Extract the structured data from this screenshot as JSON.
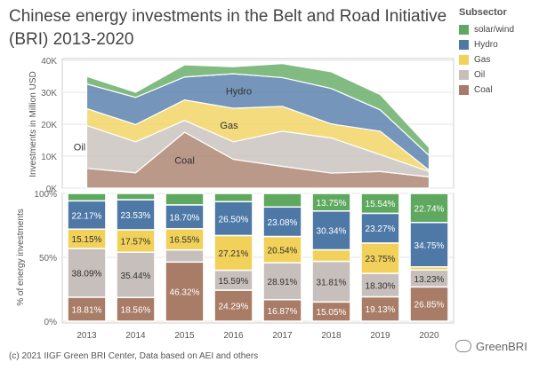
{
  "title_line1": "Chinese energy investments in the Belt and Road Initiative",
  "title_line2": "(BRI) 2013-2020",
  "legend": {
    "title": "Subsector",
    "items": [
      {
        "label": "solar/wind",
        "color": "#5fa85f"
      },
      {
        "label": "Hydro",
        "color": "#4e79a7"
      },
      {
        "label": "Gas",
        "color": "#f1d15a"
      },
      {
        "label": "Oil",
        "color": "#c7bfbb"
      },
      {
        "label": "Coal",
        "color": "#a87c66"
      }
    ]
  },
  "footer": "(c) 2021 IIGF Green BRI Center, Data based on AEI and others",
  "watermark": "GreenBRI",
  "chart_data": [
    {
      "type": "area",
      "stacked": true,
      "x": [
        "2013",
        "2014",
        "2015",
        "2016",
        "2017",
        "2018",
        "2019",
        "2020"
      ],
      "ylabel": "Investments in Million USD",
      "ylim": [
        0,
        40000
      ],
      "yticks": [
        "0K",
        "10K",
        "20K",
        "30K",
        "40K"
      ],
      "series_labels_on_chart": [
        "Hydro",
        "Gas",
        "Oil",
        "Coal"
      ],
      "series": [
        {
          "name": "Coal",
          "color": "#a87c66",
          "values": [
            6200,
            4800,
            17500,
            9000,
            6800,
            4700,
            5200,
            3500
          ]
        },
        {
          "name": "Oil",
          "color": "#c7bfbb",
          "values": [
            13400,
            9700,
            3700,
            5500,
            11000,
            11000,
            5300,
            1700
          ]
        },
        {
          "name": "Gas",
          "color": "#f1d15a",
          "values": [
            5300,
            5400,
            6400,
            10500,
            7800,
            4400,
            7300,
            400
          ]
        },
        {
          "name": "Hydro",
          "color": "#4e79a7",
          "values": [
            7700,
            8500,
            7200,
            10800,
            9000,
            11100,
            6700,
            4600
          ]
        },
        {
          "name": "solar/wind",
          "color": "#5fa85f",
          "values": [
            2400,
            1600,
            3800,
            2200,
            4400,
            5200,
            4800,
            2500
          ]
        }
      ],
      "grid": true
    },
    {
      "type": "bar",
      "stacked": true,
      "categories": [
        "2013",
        "2014",
        "2015",
        "2016",
        "2017",
        "2018",
        "2019",
        "2020"
      ],
      "ylabel": "% of energy investments",
      "ylim": [
        0,
        100
      ],
      "yticks": [
        "0%",
        "50%",
        "100%"
      ],
      "series": [
        {
          "name": "Coal",
          "color": "#a87c66",
          "values": [
            18.81,
            18.56,
            46.32,
            24.29,
            16.87,
            15.05,
            19.13,
            26.85
          ],
          "labels": [
            "18.81%",
            "18.56%",
            "46.32%",
            "24.29%",
            "16.87%",
            "15.05%",
            "19.13%",
            "26.85%"
          ]
        },
        {
          "name": "Oil",
          "color": "#c7bfbb",
          "values": [
            38.09,
            35.44,
            9.48,
            15.59,
            28.91,
            31.81,
            18.3,
            13.23
          ],
          "labels": [
            "38.09%",
            "35.44%",
            "",
            "15.59%",
            "28.91%",
            "31.81%",
            "18.30%",
            "13.23%"
          ]
        },
        {
          "name": "Gas",
          "color": "#f1d15a",
          "values": [
            15.15,
            17.57,
            16.55,
            27.21,
            20.54,
            9.05,
            23.75,
            2.43
          ],
          "labels": [
            "15.15%",
            "17.57%",
            "16.55%",
            "27.21%",
            "20.54%",
            "",
            "23.75%",
            ""
          ]
        },
        {
          "name": "Hydro",
          "color": "#4e79a7",
          "values": [
            22.17,
            23.53,
            18.7,
            26.5,
            23.08,
            30.34,
            23.27,
            34.75
          ],
          "labels": [
            "22.17%",
            "23.53%",
            "18.70%",
            "26.50%",
            "23.08%",
            "30.34%",
            "23.27%",
            "34.75%"
          ]
        },
        {
          "name": "solar/wind",
          "color": "#5fa85f",
          "values": [
            5.78,
            4.9,
            8.95,
            6.41,
            10.6,
            13.75,
            15.54,
            22.74
          ],
          "labels": [
            "",
            "",
            "",
            "",
            "",
            "13.75%",
            "15.54%",
            "22.74%"
          ]
        }
      ],
      "grid": true
    }
  ]
}
